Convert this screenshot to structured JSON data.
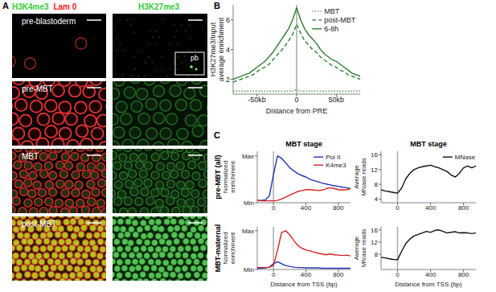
{
  "panel_labels": [
    "A",
    "B",
    "C"
  ],
  "panel_a": {
    "left_channels": [
      {
        "text": "H3K4me3",
        "color": "#33cc33"
      },
      {
        "text": "Lam 0",
        "color": "#ee2222"
      }
    ],
    "right_channels": [
      {
        "text": "H3K27me3",
        "color": "#33cc33"
      }
    ],
    "rows": [
      "pre-blastoderm",
      "pre-MBT",
      "MBT",
      "post-MBT"
    ],
    "inset_label": "pb"
  },
  "chart_data": [
    {
      "type": "line",
      "ylabel": [
        "H3K27me3/Input",
        "average enrichment"
      ],
      "xlabel": "Distance from PRE",
      "x": [
        -80,
        -75,
        -70,
        -65,
        -60,
        -55,
        -50,
        -45,
        -40,
        -35,
        -30,
        -25,
        -20,
        -15,
        -10,
        -5,
        0,
        5,
        10,
        15,
        20,
        25,
        30,
        35,
        40,
        45,
        50,
        55,
        60,
        65,
        70,
        75,
        80
      ],
      "xlim": [
        -80,
        80
      ],
      "xticks": [
        {
          "value": -50,
          "label": "-50kb"
        },
        0,
        {
          "value": 50,
          "label": "50kb"
        }
      ],
      "ylim": [
        1,
        7
      ],
      "yticks": [
        2,
        4,
        6
      ],
      "reference_x": 0,
      "legend": "upper right",
      "series": [
        {
          "name": "MBT",
          "color": "#4a9a4a",
          "line_style": "dotted",
          "values": [
            1.2,
            1.2,
            1.2,
            1.2,
            1.2,
            1.2,
            1.2,
            1.2,
            1.2,
            1.2,
            1.2,
            1.2,
            1.2,
            1.2,
            1.2,
            1.2,
            1.3,
            1.2,
            1.2,
            1.2,
            1.2,
            1.2,
            1.2,
            1.2,
            1.2,
            1.2,
            1.2,
            1.2,
            1.2,
            1.2,
            1.2,
            1.2,
            1.2
          ]
        },
        {
          "name": "post-MBT",
          "color": "#2f7d2f",
          "line_style": "dashed",
          "values": [
            1.8,
            1.9,
            2.0,
            2.1,
            2.2,
            2.3,
            2.5,
            2.7,
            2.8,
            3.0,
            3.3,
            3.6,
            3.9,
            4.2,
            4.6,
            5.0,
            5.7,
            5.1,
            4.6,
            4.3,
            4.0,
            3.8,
            3.5,
            3.3,
            3.1,
            2.9,
            2.8,
            2.6,
            2.5,
            2.3,
            2.2,
            2.1,
            2.0
          ]
        },
        {
          "name": "6-8h",
          "color": "#2f7d2f",
          "line_style": "solid",
          "values": [
            2.0,
            2.1,
            2.2,
            2.3,
            2.4,
            2.6,
            2.8,
            3.0,
            3.2,
            3.5,
            3.8,
            4.2,
            4.6,
            5.0,
            5.4,
            6.0,
            6.8,
            6.0,
            5.4,
            5.0,
            4.7,
            4.4,
            4.0,
            3.7,
            3.5,
            3.3,
            3.2,
            3.0,
            2.8,
            2.6,
            2.4,
            2.3,
            2.2
          ]
        }
      ]
    },
    {
      "type": "line",
      "title": "MBT stage",
      "annotations": [
        "pre-MBT (all)"
      ],
      "ylabel": [
        "Normalized",
        "enrichment"
      ],
      "x": [
        -200,
        -150,
        -100,
        -50,
        0,
        50,
        100,
        150,
        200,
        250,
        300,
        350,
        400,
        450,
        500,
        550,
        600,
        650,
        700,
        750,
        800,
        850,
        900,
        950
      ],
      "xlim": [
        -200,
        950
      ],
      "xticks": [
        0,
        400,
        800
      ],
      "ylim": [
        0,
        1.1
      ],
      "yticks": [
        {
          "value": 0,
          "label": "Min"
        },
        {
          "value": 1,
          "label": "Max"
        }
      ],
      "reference_x": 0,
      "legend": "upper right",
      "series": [
        {
          "name": "Pol II",
          "color": "#2233bb",
          "line_style": "solid",
          "values": [
            0.05,
            0.05,
            0.06,
            0.15,
            0.6,
            1.0,
            0.95,
            0.85,
            0.75,
            0.68,
            0.62,
            0.58,
            0.55,
            0.5,
            0.47,
            0.45,
            0.42,
            0.4,
            0.38,
            0.36,
            0.35,
            0.33,
            0.32,
            0.3
          ]
        },
        {
          "name": "K4me3",
          "color": "#d62020",
          "line_style": "solid",
          "values": [
            0.05,
            0.04,
            0.04,
            0.04,
            0.04,
            0.05,
            0.08,
            0.12,
            0.16,
            0.2,
            0.24,
            0.26,
            0.28,
            0.28,
            0.27,
            0.26,
            0.27,
            0.3,
            0.32,
            0.3,
            0.28,
            0.27,
            0.28,
            0.3
          ]
        }
      ]
    },
    {
      "type": "line",
      "title": "MBT stage",
      "ylabel": [
        "Average",
        "MNase reads"
      ],
      "x": [
        -200,
        -150,
        -100,
        -50,
        0,
        50,
        100,
        150,
        200,
        250,
        300,
        350,
        400,
        450,
        500,
        550,
        600,
        650,
        700,
        750,
        800,
        850,
        900,
        950
      ],
      "xlim": [
        -200,
        950
      ],
      "xticks": [
        0,
        400,
        800
      ],
      "ylim": [
        3,
        17
      ],
      "yticks": [
        4,
        8,
        12,
        16
      ],
      "reference_x": 0,
      "legend": "upper right",
      "series": [
        {
          "name": "MNase",
          "color": "#111111",
          "line_style": "solid",
          "values": [
            6.5,
            6.2,
            6,
            5.8,
            5.6,
            7,
            9.5,
            11,
            12,
            12.5,
            12.8,
            13,
            13.2,
            12.8,
            12.5,
            12,
            11.5,
            10.5,
            10,
            11,
            12.5,
            13,
            12.5,
            13
          ]
        }
      ]
    },
    {
      "type": "line",
      "annotations": [
        "MBT-maternal"
      ],
      "ylabel": [
        "Normalized",
        "enrichment"
      ],
      "xlabel": "Distance from TSS (bp)",
      "x": [
        -200,
        -150,
        -100,
        -50,
        0,
        50,
        100,
        150,
        200,
        250,
        300,
        350,
        400,
        450,
        500,
        550,
        600,
        650,
        700,
        750,
        800,
        850,
        900,
        950
      ],
      "xlim": [
        -200,
        950
      ],
      "xticks": [
        0,
        400,
        800
      ],
      "ylim": [
        0,
        1.1
      ],
      "yticks": [
        {
          "value": 0,
          "label": "Min"
        },
        {
          "value": 1,
          "label": "Max"
        }
      ],
      "reference_x": 0,
      "series": [
        {
          "color": "#2233bb",
          "line_style": "solid",
          "values": [
            0.03,
            0.03,
            0.04,
            0.06,
            0.15,
            0.2,
            0.15,
            0.1,
            0.08,
            0.06,
            0.05,
            0.05,
            0.04,
            0.04,
            0.04,
            0.04,
            0.03,
            0.03,
            0.03,
            0.03,
            0.03,
            0.03,
            0.03,
            0.03
          ]
        },
        {
          "color": "#d62020",
          "line_style": "solid",
          "values": [
            0.05,
            0.05,
            0.05,
            0.06,
            0.1,
            0.5,
            0.95,
            1.0,
            0.9,
            0.75,
            0.62,
            0.55,
            0.5,
            0.48,
            0.45,
            0.42,
            0.4,
            0.38,
            0.4,
            0.38,
            0.37,
            0.36,
            0.37,
            0.35
          ]
        }
      ]
    },
    {
      "type": "line",
      "ylabel": [
        "Average",
        "MNase reads"
      ],
      "xlabel": "Distance from TSS (bp)",
      "x": [
        -200,
        -150,
        -100,
        -50,
        0,
        50,
        100,
        150,
        200,
        250,
        300,
        350,
        400,
        450,
        500,
        550,
        600,
        650,
        700,
        750,
        800,
        850,
        900,
        950
      ],
      "xlim": [
        -200,
        950
      ],
      "xticks": [
        0,
        400,
        800
      ],
      "ylim": [
        3,
        17
      ],
      "yticks": [
        8,
        12,
        16
      ],
      "reference_x": 0,
      "series": [
        {
          "color": "#111111",
          "line_style": "solid",
          "values": [
            7,
            6.8,
            6.5,
            6.3,
            6.2,
            9,
            11.5,
            13,
            14,
            14.5,
            15,
            15.5,
            15.2,
            15.8,
            16,
            15.5,
            15,
            15.2,
            15.4,
            15,
            15.1,
            15,
            14.8,
            15
          ]
        }
      ]
    }
  ]
}
